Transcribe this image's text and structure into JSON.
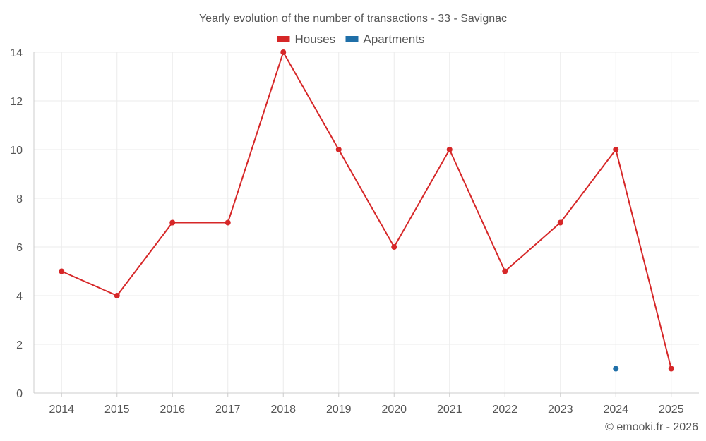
{
  "chart_data": {
    "type": "line",
    "title": "Yearly evolution of the number of transactions - 33 - Savignac",
    "xlabel": "",
    "ylabel": "",
    "categories": [
      "2014",
      "2015",
      "2016",
      "2017",
      "2018",
      "2019",
      "2020",
      "2021",
      "2022",
      "2023",
      "2024",
      "2025"
    ],
    "ylim": [
      0,
      14
    ],
    "yticks": [
      0,
      2,
      4,
      6,
      8,
      10,
      12,
      14
    ],
    "grid": true,
    "legend_position": "top-center",
    "series": [
      {
        "name": "Houses",
        "color": "#d62728",
        "values": [
          5,
          4,
          7,
          7,
          14,
          10,
          6,
          10,
          5,
          7,
          10,
          1
        ]
      },
      {
        "name": "Apartments",
        "color": "#1f6fa8",
        "values": [
          null,
          null,
          null,
          null,
          null,
          null,
          null,
          null,
          null,
          null,
          1,
          null
        ]
      }
    ]
  },
  "credit": "© emooki.fr - 2026"
}
